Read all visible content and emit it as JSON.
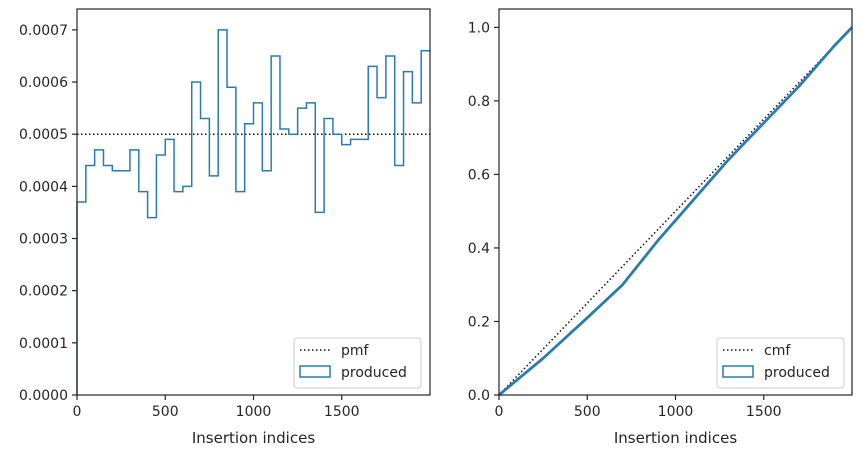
{
  "colors": {
    "hist": "#2b7bb0",
    "ref": "#111111",
    "axes": "#262626",
    "legend_border": "#cccccc"
  },
  "chart_data": [
    {
      "type": "histogram-step",
      "xlabel": "Insertion indices",
      "ylabel": "",
      "xlim": [
        0,
        2000
      ],
      "ylim": [
        0,
        0.00074
      ],
      "xticks": [
        0,
        500,
        1000,
        1500
      ],
      "xtick_labels": [
        "0",
        "500",
        "1000",
        "1500"
      ],
      "yticks": [
        0,
        0.0001,
        0.0002,
        0.0003,
        0.0004,
        0.0005,
        0.0006,
        0.0007
      ],
      "ytick_labels": [
        "0.0000",
        "0.0001",
        "0.0002",
        "0.0003",
        "0.0004",
        "0.0005",
        "0.0006",
        "0.0007"
      ],
      "bin_width": 50,
      "produced_values": [
        0.00037,
        0.00044,
        0.00047,
        0.00044,
        0.00043,
        0.00043,
        0.00047,
        0.00039,
        0.00034,
        0.00046,
        0.00049,
        0.00039,
        0.0004,
        0.0006,
        0.00053,
        0.00042,
        0.0007,
        0.00059,
        0.00039,
        0.00052,
        0.00056,
        0.00043,
        0.00065,
        0.00051,
        0.0005,
        0.00055,
        0.00056,
        0.00035,
        0.00053,
        0.0005,
        0.00048,
        0.00049,
        0.00049,
        0.00063,
        0.00057,
        0.00065,
        0.00044,
        0.00062,
        0.00056,
        0.00066
      ],
      "pmf_value": 0.0005,
      "grid": false,
      "legend_position": "lower-right",
      "legend": [
        "pmf",
        "produced"
      ]
    },
    {
      "type": "line",
      "xlabel": "Insertion indices",
      "ylabel": "",
      "xlim": [
        0,
        2000
      ],
      "ylim": [
        0,
        1.05
      ],
      "xticks": [
        0,
        500,
        1000,
        1500
      ],
      "xtick_labels": [
        "0",
        "500",
        "1000",
        "1500"
      ],
      "yticks": [
        0,
        0.2,
        0.4,
        0.6,
        0.8,
        1.0
      ],
      "ytick_labels": [
        "0.0",
        "0.2",
        "0.4",
        "0.6",
        "0.8",
        "1.0"
      ],
      "cmf_line": {
        "x": [
          0,
          2000
        ],
        "y": [
          0,
          1.0
        ]
      },
      "produced_x": [
        0,
        250,
        500,
        700,
        900,
        1100,
        1300,
        1500,
        1700,
        1900,
        2000
      ],
      "produced_y": [
        0,
        0.1,
        0.21,
        0.3,
        0.42,
        0.53,
        0.64,
        0.74,
        0.84,
        0.95,
        1.0
      ],
      "grid": false,
      "legend_position": "lower-right",
      "legend": [
        "cmf",
        "produced"
      ]
    }
  ]
}
